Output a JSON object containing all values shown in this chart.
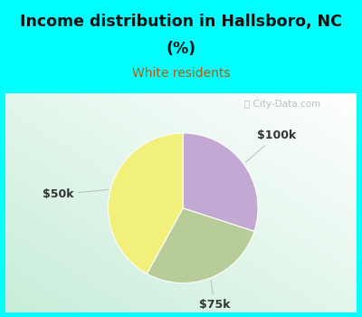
{
  "title_line1": "Income distribution in Hallsboro, NC",
  "title_line2": "(%)",
  "subtitle": "White residents",
  "title_color": "#111111",
  "subtitle_color": "#b05a10",
  "bg_color": "#00ffff",
  "chart_bg": "#e8f5ee",
  "slices": [
    {
      "label": "$50k",
      "value": 42,
      "color": "#f0f07a"
    },
    {
      "label": "$75k",
      "value": 28,
      "color": "#b8cc99"
    },
    {
      "label": "$100k",
      "value": 30,
      "color": "#c4a8d4"
    }
  ],
  "label_color": "#333333",
  "label_fontsize": 9,
  "startangle": 90,
  "figsize": [
    4.0,
    3.5
  ],
  "dpi": 100
}
